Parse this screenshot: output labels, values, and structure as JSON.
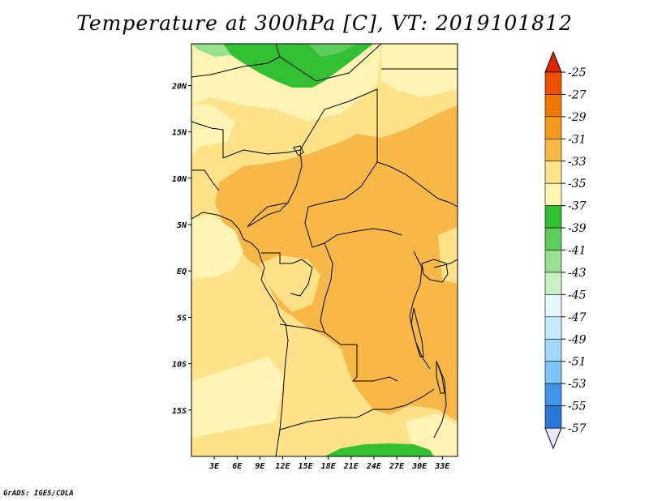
{
  "title": "Temperature at 300hPa [C], VT: 2019101812",
  "credit": "GrADS: IGES/COLA",
  "map": {
    "lon_labels": [
      "3E",
      "6E",
      "9E",
      "12E",
      "15E",
      "18E",
      "21E",
      "24E",
      "27E",
      "30E",
      "33E"
    ],
    "lat_labels": [
      "20N",
      "15N",
      "10N",
      "5N",
      "EQ",
      "5S",
      "10S",
      "15S"
    ],
    "lon_values": [
      3,
      6,
      9,
      12,
      15,
      18,
      21,
      24,
      27,
      30,
      33
    ],
    "lat_values": [
      20,
      15,
      10,
      5,
      0,
      -5,
      -10,
      -15
    ],
    "lon_range": [
      0,
      35
    ],
    "lat_range": [
      -20,
      24.5
    ]
  },
  "colorbar": {
    "labels": [
      "-25",
      "-27",
      "-29",
      "-31",
      "-33",
      "-35",
      "-37",
      "-39",
      "-41",
      "-43",
      "-45",
      "-47",
      "-49",
      "-51",
      "-53",
      "-55",
      "-57"
    ],
    "colors": [
      "#e8e8ff",
      "#071c8e",
      "#0d3ea8",
      "#1a5cc4",
      "#2a78d8",
      "#4294e8",
      "#5eacf0",
      "#7ec4f6",
      "#a2d8fa",
      "#c4ecfc",
      "#e6f8ff",
      "#c8f0c0",
      "#96e08e",
      "#5ccc5c",
      "#32c032",
      "#fff4b4",
      "#fde28a",
      "#f8b848",
      "#f49a1c",
      "#f07800",
      "#ea5200",
      "#e0260a"
    ]
  },
  "shading": {
    "c33": "#fff4b4",
    "c31": "#fde28a",
    "c29": "#f8b848",
    "c37": "#32c032",
    "c39": "#5ccc5c"
  }
}
